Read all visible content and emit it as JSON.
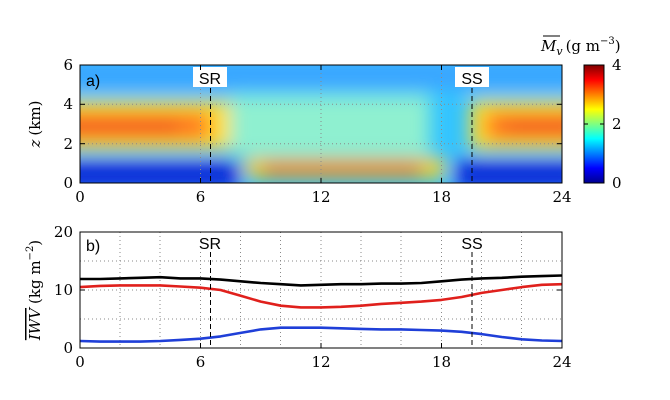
{
  "chart_data": [
    {
      "type": "heatmap",
      "panel_label": "a)",
      "xlim": [
        0,
        24
      ],
      "ylim": [
        0,
        6
      ],
      "xticks": [
        "0",
        "6",
        "12",
        "18",
        "24"
      ],
      "yticks": [
        "0",
        "2",
        "4",
        "6"
      ],
      "ylabel_var": "z",
      "ylabel_unit": "(km)",
      "colorbar": {
        "label_var": "M",
        "label_sub": "v",
        "label_unit": "(g m",
        "label_exp": "−3",
        "label_close": ")",
        "ticks": [
          "0",
          "2",
          "4"
        ],
        "range": [
          0,
          4
        ]
      },
      "markers": [
        {
          "label": "SR",
          "x": 6.5
        },
        {
          "label": "SS",
          "x": 19.5
        }
      ]
    },
    {
      "type": "line",
      "panel_label": "b)",
      "xlim": [
        0,
        24
      ],
      "ylim": [
        0,
        20
      ],
      "xticks": [
        "0",
        "6",
        "12",
        "18",
        "24"
      ],
      "yticks": [
        "0",
        "10",
        "20"
      ],
      "ylabel_var": "IWV",
      "ylabel_unit": "(kg m",
      "ylabel_exp": "−2",
      "ylabel_close": ")",
      "x": [
        0,
        1,
        2,
        3,
        4,
        5,
        6,
        7,
        8,
        9,
        10,
        11,
        12,
        13,
        14,
        15,
        16,
        17,
        18,
        19,
        20,
        21,
        22,
        23,
        24
      ],
      "series": [
        {
          "color": "#000000",
          "values": [
            11.9,
            11.9,
            12.0,
            12.1,
            12.2,
            12.0,
            12.0,
            11.8,
            11.5,
            11.2,
            11.0,
            10.8,
            10.9,
            11.0,
            11.0,
            11.1,
            11.1,
            11.2,
            11.5,
            11.8,
            12.0,
            12.1,
            12.3,
            12.4,
            12.5
          ]
        },
        {
          "color": "#e0201c",
          "values": [
            10.5,
            10.7,
            10.8,
            10.8,
            10.8,
            10.6,
            10.4,
            10.0,
            9.0,
            8.0,
            7.3,
            7.0,
            7.0,
            7.1,
            7.3,
            7.6,
            7.8,
            8.0,
            8.3,
            8.8,
            9.5,
            10.0,
            10.5,
            10.9,
            11.0
          ]
        },
        {
          "color": "#1f3fd8",
          "values": [
            1.2,
            1.1,
            1.1,
            1.1,
            1.2,
            1.4,
            1.6,
            2.0,
            2.6,
            3.2,
            3.5,
            3.5,
            3.5,
            3.4,
            3.3,
            3.2,
            3.2,
            3.1,
            3.0,
            2.8,
            2.4,
            1.9,
            1.5,
            1.3,
            1.2
          ]
        }
      ],
      "markers": [
        {
          "label": "SR",
          "x": 6.5
        },
        {
          "label": "SS",
          "x": 19.5
        }
      ]
    }
  ],
  "colors": {
    "cmap": [
      "#00008f",
      "#0000ff",
      "#0080ff",
      "#00ffff",
      "#80ff80",
      "#ffff00",
      "#ff8000",
      "#ff0000",
      "#800000"
    ],
    "grid": "#8a8a8a",
    "axis": "#000000"
  }
}
